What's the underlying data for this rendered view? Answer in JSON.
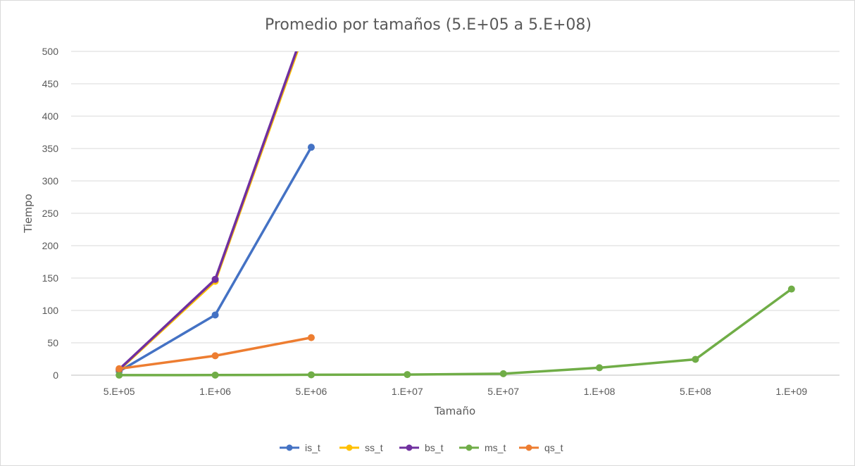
{
  "chart_data": {
    "type": "line",
    "title": "Promedio por tamaños (5.E+05 a 5.E+08)",
    "xlabel": "Tamaño",
    "ylabel": "Tiempo",
    "categories": [
      "5.E+05",
      "1.E+06",
      "5.E+06",
      "1.E+07",
      "5.E+07",
      "1.E+08",
      "5.E+08",
      "1.E+09"
    ],
    "ylim": [
      0,
      500
    ],
    "yticks": [
      0,
      50,
      100,
      150,
      200,
      250,
      300,
      350,
      400,
      450,
      500
    ],
    "grid": true,
    "legend_position": "bottom",
    "series": [
      {
        "name": "is_t",
        "color": "#4472C4",
        "values": [
          6,
          93,
          352,
          null,
          null,
          null,
          null,
          null
        ]
      },
      {
        "name": "ss_t",
        "color": "#FFC000",
        "values": [
          8,
          145,
          560,
          null,
          null,
          null,
          null,
          null
        ]
      },
      {
        "name": "bs_t",
        "color": "#7030A0",
        "values": [
          9,
          148,
          565,
          null,
          null,
          null,
          null,
          null
        ]
      },
      {
        "name": "ms_t",
        "color": "#70AD47",
        "values": [
          0.1,
          0.2,
          0.6,
          1,
          2.3,
          11.5,
          24.5,
          133
        ]
      },
      {
        "name": "qs_t",
        "color": "#ED7D31",
        "values": [
          10,
          30,
          58,
          null,
          null,
          null,
          null,
          null
        ]
      }
    ]
  }
}
